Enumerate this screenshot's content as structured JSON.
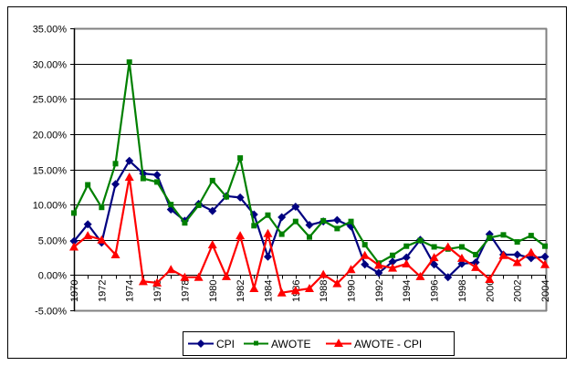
{
  "chart_data": {
    "type": "line",
    "title": "",
    "xlabel": "",
    "ylabel": "",
    "ylim": [
      -5,
      35
    ],
    "y_ticks": [
      "35.00%",
      "30.00%",
      "25.00%",
      "20.00%",
      "15.00%",
      "10.00%",
      "5.00%",
      "0.00%",
      "-5.00%"
    ],
    "y_tick_values": [
      35,
      30,
      25,
      20,
      15,
      10,
      5,
      0,
      -5
    ],
    "x": [
      1970,
      1971,
      1972,
      1973,
      1974,
      1975,
      1976,
      1977,
      1978,
      1979,
      1980,
      1981,
      1982,
      1983,
      1984,
      1985,
      1986,
      1987,
      1988,
      1989,
      1990,
      1991,
      1992,
      1993,
      1994,
      1995,
      1996,
      1997,
      1998,
      1999,
      2000,
      2001,
      2002,
      2003,
      2004
    ],
    "x_tick_labels": [
      "1970",
      "1972",
      "1974",
      "1976",
      "1978",
      "1980",
      "1982",
      "1984",
      "1986",
      "1988",
      "1990",
      "1992",
      "1994",
      "1996",
      "1998",
      "2000",
      "2002",
      "2004"
    ],
    "grid": true,
    "legend_position": "bottom",
    "series": [
      {
        "name": "CPI",
        "color": "#000080",
        "marker": "diamond",
        "values": [
          4.8,
          7.2,
          4.6,
          12.9,
          16.2,
          14.4,
          14.2,
          9.3,
          7.7,
          10.1,
          9.1,
          11.2,
          11.0,
          8.6,
          2.6,
          8.2,
          9.7,
          7.1,
          7.6,
          7.8,
          6.9,
          1.5,
          0.3,
          1.9,
          2.5,
          5.0,
          1.5,
          -0.3,
          1.6,
          1.8,
          5.8,
          2.9,
          2.9,
          2.4,
          2.6
        ]
      },
      {
        "name": "AWOTE",
        "color": "#008000",
        "marker": "square",
        "values": [
          8.8,
          12.8,
          9.6,
          15.8,
          30.2,
          13.7,
          13.2,
          10.0,
          7.4,
          9.9,
          13.4,
          11.1,
          16.6,
          7.0,
          8.5,
          5.8,
          7.6,
          5.4,
          7.7,
          6.6,
          7.6,
          4.3,
          1.7,
          2.8,
          4.1,
          4.9,
          4.0,
          3.7,
          4.0,
          2.9,
          5.3,
          5.7,
          4.7,
          5.6,
          4.1
        ]
      },
      {
        "name": "AWOTE - CPI",
        "color": "#FF0000",
        "marker": "triangle",
        "values": [
          4.0,
          5.6,
          5.0,
          2.9,
          13.9,
          -0.9,
          -1.1,
          0.8,
          -0.3,
          -0.3,
          4.3,
          -0.2,
          5.6,
          -1.9,
          5.9,
          -2.5,
          -2.2,
          -1.9,
          0.1,
          -1.2,
          0.8,
          2.8,
          1.4,
          1.0,
          1.6,
          -0.2,
          2.5,
          4.0,
          2.4,
          1.1,
          -0.6,
          2.8,
          1.8,
          3.2,
          1.5
        ]
      }
    ]
  },
  "legend": {
    "items": [
      {
        "label": "CPI"
      },
      {
        "label": "AWOTE"
      },
      {
        "label": "AWOTE - CPI"
      }
    ]
  }
}
